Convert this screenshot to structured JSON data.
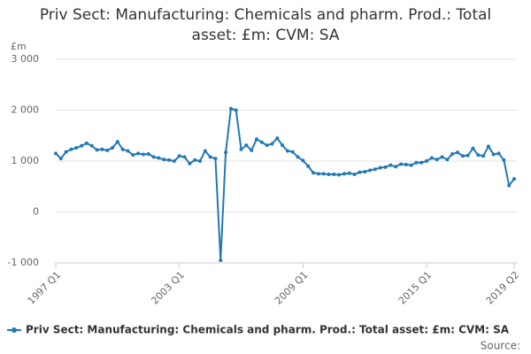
{
  "chart_data": {
    "type": "line",
    "title": "Priv Sect: Manufacturing: Chemicals and pharm. Prod.: Total asset: £m: CVM: SA",
    "y_unit": "£m",
    "source": "Source:",
    "categories": [
      "1997 Q1",
      null,
      null,
      null,
      null,
      null,
      null,
      null,
      null,
      null,
      null,
      null,
      null,
      null,
      null,
      null,
      null,
      null,
      null,
      null,
      null,
      null,
      null,
      null,
      "2003 Q1",
      null,
      null,
      null,
      null,
      null,
      null,
      null,
      null,
      null,
      null,
      null,
      null,
      null,
      null,
      null,
      null,
      null,
      null,
      null,
      null,
      null,
      null,
      null,
      "2009 Q1",
      null,
      null,
      null,
      null,
      null,
      null,
      null,
      null,
      null,
      null,
      null,
      null,
      null,
      null,
      null,
      null,
      null,
      null,
      null,
      null,
      null,
      null,
      null,
      "2015 Q1",
      null,
      null,
      null,
      null,
      null,
      null,
      null,
      null,
      null,
      null,
      null,
      null,
      null,
      null,
      null,
      null,
      "2019 Q2"
    ],
    "series": [
      {
        "name": "Priv Sect: Manufacturing: Chemicals and pharm. Prod.: Total asset: £m: CVM: SA",
        "color": "#2378b5",
        "values": [
          1150,
          1050,
          1180,
          1230,
          1260,
          1300,
          1350,
          1300,
          1220,
          1230,
          1210,
          1260,
          1380,
          1230,
          1200,
          1120,
          1150,
          1130,
          1140,
          1080,
          1060,
          1030,
          1020,
          1000,
          1100,
          1080,
          950,
          1020,
          1000,
          1200,
          1080,
          1050,
          -950,
          1170,
          2030,
          2000,
          1230,
          1310,
          1210,
          1430,
          1370,
          1310,
          1340,
          1450,
          1310,
          1200,
          1180,
          1080,
          1010,
          900,
          770,
          750,
          750,
          740,
          740,
          730,
          750,
          760,
          740,
          780,
          790,
          820,
          840,
          870,
          880,
          920,
          890,
          940,
          930,
          920,
          970,
          970,
          1000,
          1060,
          1030,
          1080,
          1030,
          1140,
          1170,
          1100,
          1110,
          1250,
          1120,
          1100,
          1290,
          1130,
          1150,
          1020,
          520,
          650
        ]
      }
    ],
    "ylim": [
      -1000,
      3000
    ],
    "yticks": [
      {
        "value": -1000,
        "label": "-1 000"
      },
      0,
      {
        "value": 1000,
        "label": "1 000"
      },
      {
        "value": 2000,
        "label": "2 000"
      },
      {
        "value": 3000,
        "label": "3 000"
      }
    ],
    "grid": true
  }
}
